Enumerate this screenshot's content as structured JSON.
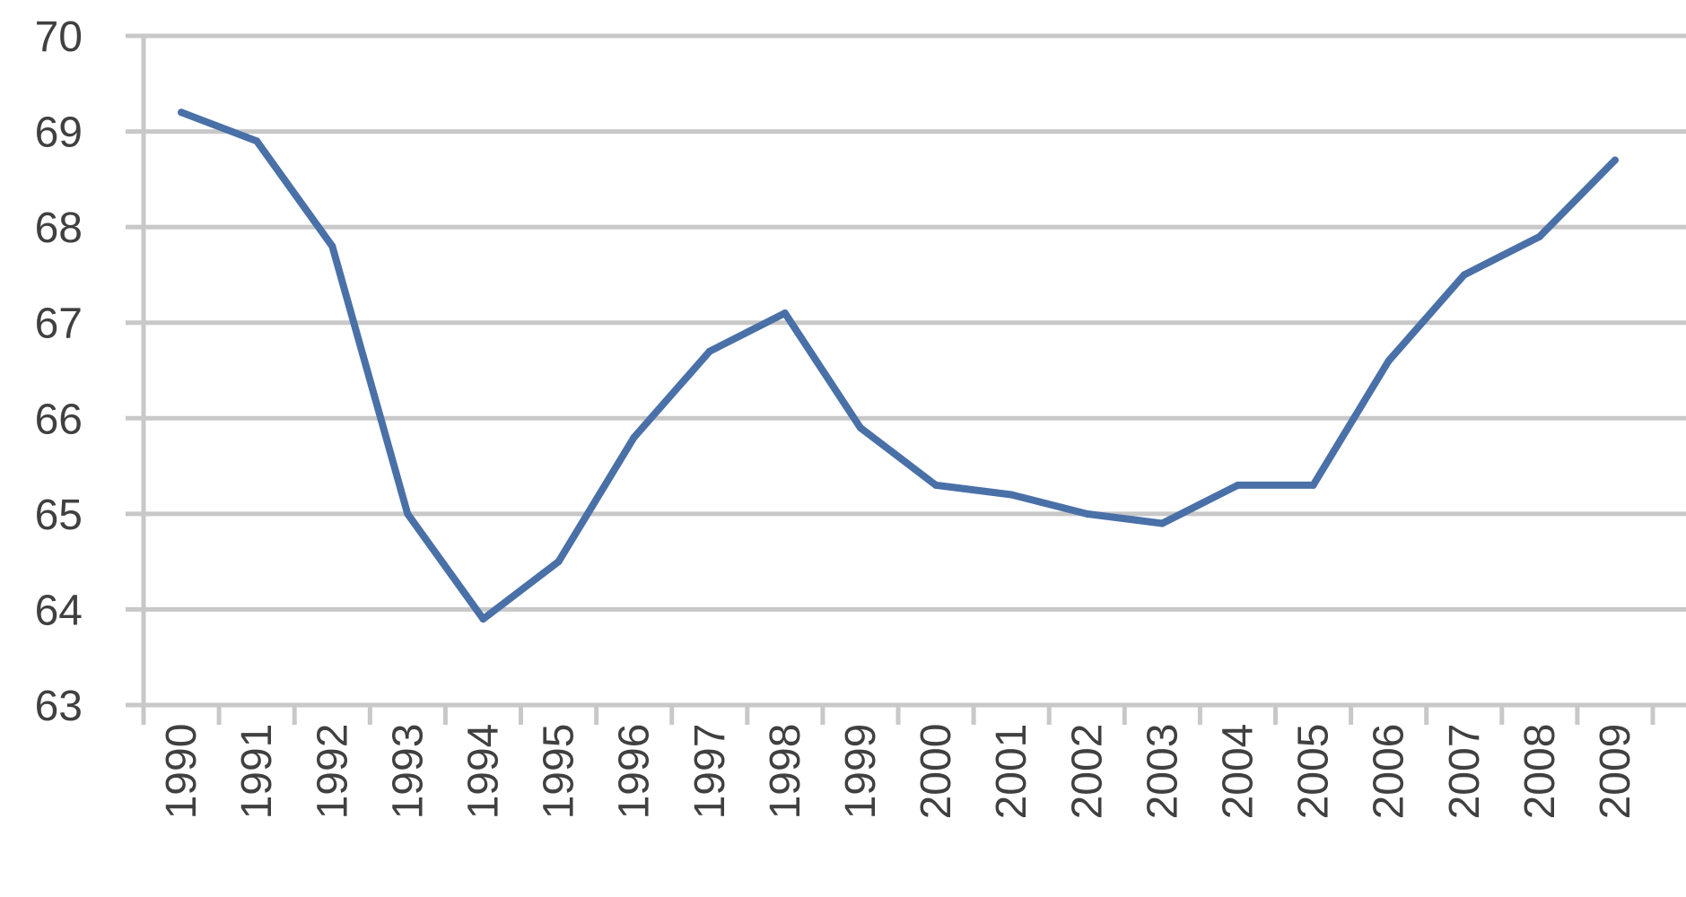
{
  "chart_data": {
    "type": "line",
    "x": [
      "1990",
      "1991",
      "1992",
      "1993",
      "1994",
      "1995",
      "1996",
      "1997",
      "1998",
      "1999",
      "2000",
      "2001",
      "2002",
      "2003",
      "2004",
      "2005",
      "2006",
      "2007",
      "2008",
      "2009"
    ],
    "series": [
      {
        "values": [
          69.2,
          68.9,
          67.8,
          65.0,
          63.9,
          64.5,
          65.8,
          66.7,
          67.1,
          65.9,
          65.3,
          65.2,
          65.0,
          64.9,
          65.3,
          65.3,
          66.6,
          67.5,
          67.9,
          68.7
        ]
      }
    ],
    "ylim": [
      63,
      70
    ],
    "yticks": [
      63,
      64,
      65,
      66,
      67,
      68,
      69,
      70
    ],
    "grid": true,
    "legend": "none",
    "colors": {
      "series": "#4a70a8",
      "grid": "#c8c8c8",
      "text": "#404040"
    }
  }
}
